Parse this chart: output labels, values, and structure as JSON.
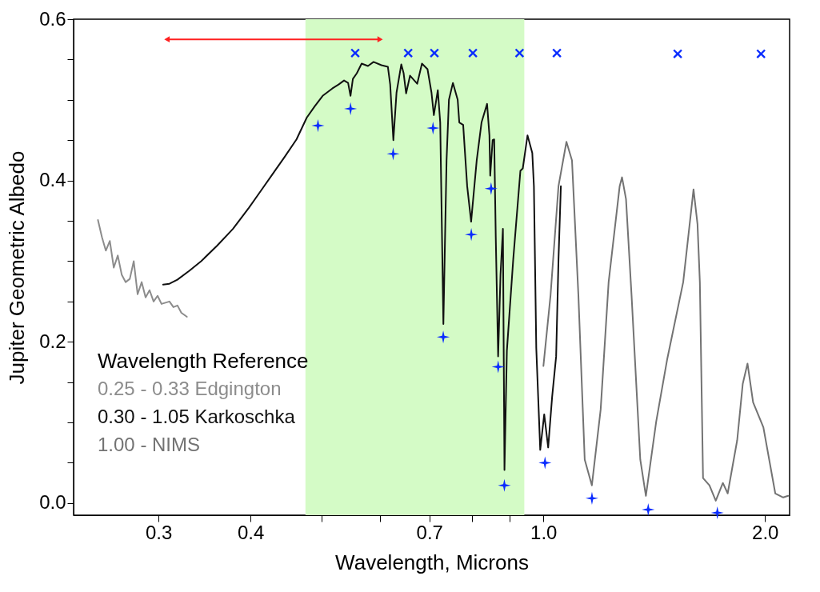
{
  "chart_data": {
    "type": "line",
    "xlabel": "Wavelength, Microns",
    "ylabel": "Jupiter Geometric Albedo",
    "legend_title": "Wavelength  Reference",
    "legend": "bottom left",
    "log": "x",
    "xlim": [
      0.23,
      2.16
    ],
    "ylim": [
      -0.015,
      0.6
    ],
    "xticks": [
      {
        "value": 0.3,
        "label": "0.3"
      },
      {
        "value": 0.4,
        "label": "0.4"
      },
      {
        "value": 0.5,
        "label": null
      },
      {
        "value": 0.6,
        "label": null
      },
      {
        "value": 0.7,
        "label": "0.7"
      },
      {
        "value": 0.8,
        "label": null
      },
      {
        "value": 0.9,
        "label": null
      },
      {
        "value": 1,
        "label": "1.0"
      },
      {
        "value": 2,
        "label": "2.0"
      }
    ],
    "yticks": [
      {
        "value": 0,
        "label": "0.0"
      },
      {
        "value": 0.05,
        "label": null
      },
      {
        "value": 0.1,
        "label": null
      },
      {
        "value": 0.15,
        "label": null
      },
      {
        "value": 0.2,
        "label": "0.2"
      },
      {
        "value": 0.25,
        "label": null
      },
      {
        "value": 0.3,
        "label": null
      },
      {
        "value": 0.35,
        "label": null
      },
      {
        "value": 0.4,
        "label": "0.4"
      },
      {
        "value": 0.45,
        "label": null
      },
      {
        "value": 0.5,
        "label": null
      },
      {
        "value": 0.55,
        "label": null
      },
      {
        "value": 0.6,
        "label": "0.6"
      }
    ],
    "bands": [
      {
        "axis": "x",
        "from": 0.475,
        "to": 0.942,
        "color": "#d4fbc6"
      }
    ],
    "series": [
      {
        "name": "0.25 - 0.33 Edgington",
        "line_style": "solid",
        "color": "#8c8c8c",
        "x": [
          0.2482,
          0.2513,
          0.2544,
          0.2576,
          0.2608,
          0.2641,
          0.2674,
          0.2707,
          0.2742,
          0.2776,
          0.281,
          0.2846,
          0.2881,
          0.2917,
          0.2954,
          0.2991,
          0.3028,
          0.3104,
          0.3143,
          0.3183,
          0.3222,
          0.3279
        ],
        "values": [
          0.351,
          0.33,
          0.313,
          0.325,
          0.292,
          0.307,
          0.283,
          0.274,
          0.278,
          0.3,
          0.259,
          0.274,
          0.255,
          0.264,
          0.25,
          0.257,
          0.247,
          0.25,
          0.243,
          0.245,
          0.236,
          0.231
        ]
      },
      {
        "name": "0.30 - 1.05 Karkoschka",
        "line_style": "solid",
        "color": "#111111",
        "x": [
          0.3043,
          0.3104,
          0.3182,
          0.3303,
          0.3428,
          0.3602,
          0.3786,
          0.3979,
          0.413,
          0.4286,
          0.4449,
          0.4619,
          0.477,
          0.489,
          0.5013,
          0.5165,
          0.5269,
          0.536,
          0.5428,
          0.5469,
          0.551,
          0.5579,
          0.5663,
          0.5776,
          0.5878,
          0.6025,
          0.6147,
          0.6192,
          0.6254,
          0.6316,
          0.6411,
          0.6458,
          0.6508,
          0.6589,
          0.6738,
          0.6839,
          0.6959,
          0.7046,
          0.7098,
          0.7187,
          0.7241,
          0.7313,
          0.7386,
          0.7441,
          0.7534,
          0.7648,
          0.7686,
          0.778,
          0.7878,
          0.7976,
          0.8117,
          0.824,
          0.8384,
          0.8446,
          0.8467,
          0.8531,
          0.8573,
          0.8615,
          0.8679,
          0.8744,
          0.881,
          0.8853,
          0.892,
          0.9099,
          0.9305,
          0.9375,
          0.9515,
          0.9658,
          0.9707,
          0.9779,
          0.9901,
          1.0025,
          1.015,
          1.0277,
          1.0406,
          1.0483,
          1.0561
        ],
        "values": [
          0.271,
          0.272,
          0.277,
          0.288,
          0.3,
          0.319,
          0.34,
          0.366,
          0.387,
          0.408,
          0.429,
          0.451,
          0.478,
          0.492,
          0.505,
          0.514,
          0.519,
          0.524,
          0.521,
          0.505,
          0.526,
          0.533,
          0.545,
          0.542,
          0.547,
          0.543,
          0.541,
          0.519,
          0.45,
          0.509,
          0.544,
          0.533,
          0.508,
          0.53,
          0.52,
          0.545,
          0.538,
          0.509,
          0.481,
          0.512,
          0.472,
          0.222,
          0.425,
          0.5,
          0.521,
          0.5,
          0.472,
          0.469,
          0.393,
          0.349,
          0.425,
          0.472,
          0.495,
          0.456,
          0.406,
          0.45,
          0.451,
          0.33,
          0.182,
          0.283,
          0.34,
          0.041,
          0.189,
          0.302,
          0.412,
          0.415,
          0.456,
          0.434,
          0.393,
          0.192,
          0.066,
          0.11,
          0.069,
          0.132,
          0.182,
          0.302,
          0.393
        ]
      },
      {
        "name": "1.00 - NIMS",
        "line_style": "solid",
        "color": "#737373",
        "x": [
          1.0,
          1.0226,
          1.0483,
          1.0747,
          1.0935,
          1.1156,
          1.1379,
          1.1637,
          1.1961,
          1.2263,
          1.2694,
          1.2788,
          1.2948,
          1.3174,
          1.3539,
          1.3779,
          1.423,
          1.4733,
          1.5485,
          1.5993,
          1.6193,
          1.6313,
          1.6476,
          1.6809,
          1.7145,
          1.7532,
          1.7797,
          1.8334,
          1.8656,
          1.8935,
          1.9269,
          1.9899,
          2.0654,
          2.1174,
          2.15
        ],
        "values": [
          0.17,
          0.258,
          0.393,
          0.448,
          0.425,
          0.258,
          0.054,
          0.022,
          0.116,
          0.274,
          0.393,
          0.404,
          0.377,
          0.258,
          0.054,
          0.009,
          0.101,
          0.179,
          0.274,
          0.389,
          0.346,
          0.274,
          0.031,
          0.022,
          0.003,
          0.025,
          0.012,
          0.078,
          0.148,
          0.173,
          0.125,
          0.094,
          0.012,
          0.007,
          0.009
        ]
      },
      {
        "type": "scatter",
        "marker": "cross",
        "color": "#0a2cff",
        "x": [
          0.555,
          0.655,
          0.711,
          0.802,
          0.928,
          1.043,
          1.522,
          1.975
        ],
        "values": [
          0.558,
          0.558,
          0.558,
          0.558,
          0.558,
          0.558,
          0.557,
          0.557
        ]
      },
      {
        "type": "scatter",
        "marker": "star",
        "color": "#0a2cff",
        "x": [
          0.494,
          0.547,
          0.625,
          0.708,
          0.731,
          0.798,
          0.849,
          0.868,
          0.885,
          1.005,
          1.164,
          1.388,
          1.723
        ],
        "values": [
          0.468,
          0.489,
          0.433,
          0.465,
          0.206,
          0.333,
          0.39,
          0.169,
          0.022,
          0.05,
          0.006,
          -0.008,
          -0.012
        ]
      },
      {
        "type": "line",
        "marker": "triangle",
        "line_style": "solid",
        "color": "#ff2020",
        "x": [
          0.308,
          0.6
        ],
        "values": [
          0.575,
          0.575
        ]
      }
    ]
  }
}
